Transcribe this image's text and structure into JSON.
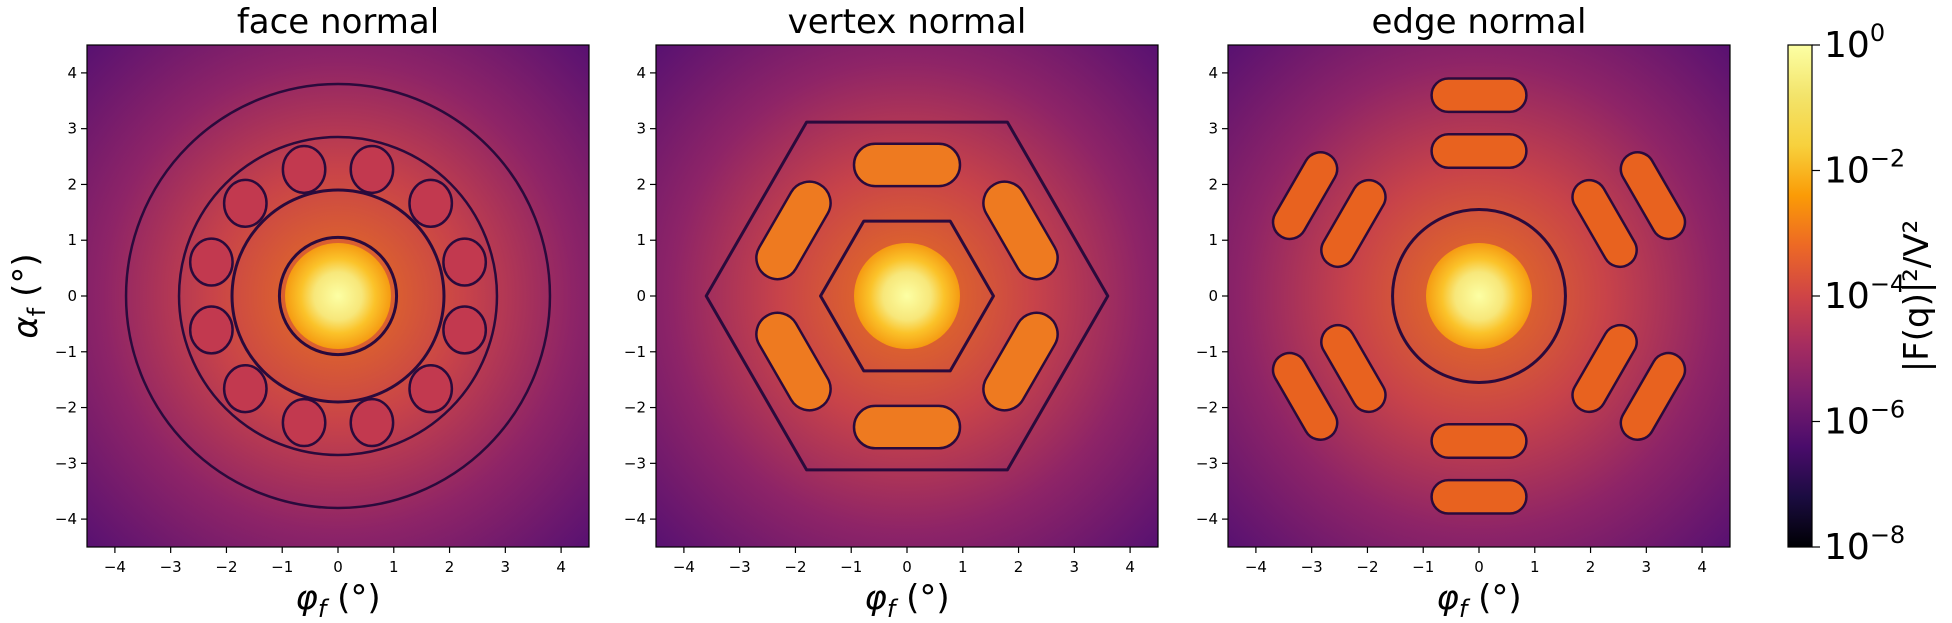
{
  "chart_data": [
    {
      "type": "heatmap",
      "title": "face normal",
      "xlabel": "φ_f (°)",
      "ylabel": "α_f (°)",
      "xlim": [
        -4.5,
        4.5
      ],
      "ylim": [
        -4.5,
        4.5
      ],
      "x_ticks": [
        -4,
        -3,
        -2,
        -1,
        0,
        1,
        2,
        3,
        4
      ],
      "y_ticks": [
        -4,
        -3,
        -2,
        -1,
        0,
        1,
        2,
        3,
        4
      ],
      "pattern": "octahedron face normal (3-fold symmetric scattering rings)",
      "peak_value": 1
    },
    {
      "type": "heatmap",
      "title": "vertex normal",
      "xlabel": "φ_f (°)",
      "ylabel": "",
      "xlim": [
        -4.5,
        4.5
      ],
      "ylim": [
        -4.5,
        4.5
      ],
      "x_ticks": [
        -4,
        -3,
        -2,
        -1,
        0,
        1,
        2,
        3,
        4
      ],
      "y_ticks": [
        -4,
        -3,
        -2,
        -1,
        0,
        1,
        2,
        3,
        4
      ],
      "pattern": "octahedron vertex normal (hexagonal ring segments)",
      "peak_value": 1
    },
    {
      "type": "heatmap",
      "title": "edge normal",
      "xlabel": "φ_f (°)",
      "ylabel": "",
      "xlim": [
        -4.5,
        4.5
      ],
      "ylim": [
        -4.5,
        4.5
      ],
      "x_ticks": [
        -4,
        -3,
        -2,
        -1,
        0,
        1,
        2,
        3,
        4
      ],
      "y_ticks": [
        -4,
        -3,
        -2,
        -1,
        0,
        1,
        2,
        3,
        4
      ],
      "pattern": "octahedron edge normal (chevron ring segments)",
      "peak_value": 1
    }
  ],
  "colorbar": {
    "label": "|F(q)|²/V²",
    "scale": "log",
    "colormap": "inferno",
    "range": [
      1e-08,
      1
    ],
    "ticks": [
      {
        "value": 1,
        "base": "10",
        "exp": "0"
      },
      {
        "value": 0.01,
        "base": "10",
        "exp": "−2"
      },
      {
        "value": 0.0001,
        "base": "10",
        "exp": "−4"
      },
      {
        "value": 1e-06,
        "base": "10",
        "exp": "−6"
      },
      {
        "value": 1e-08,
        "base": "10",
        "exp": "−8"
      }
    ]
  }
}
